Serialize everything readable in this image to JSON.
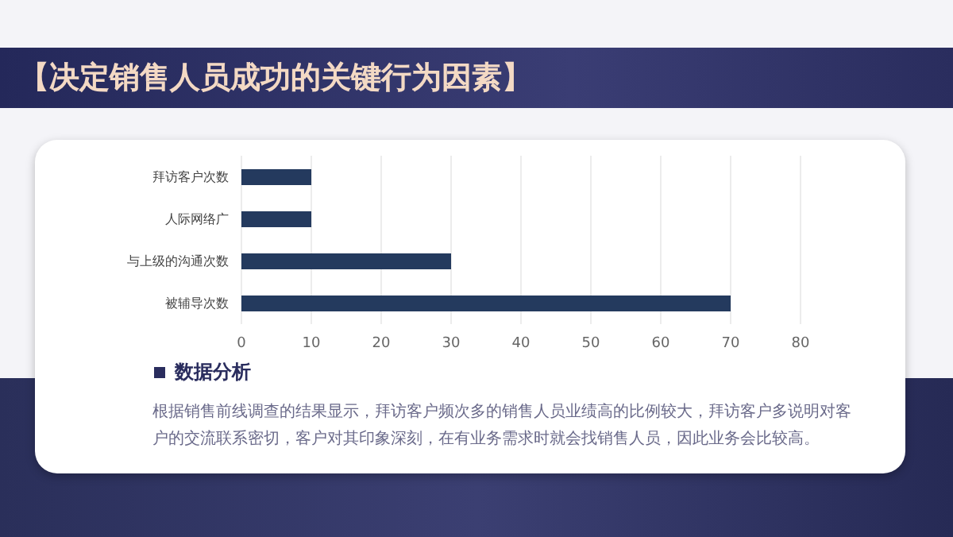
{
  "chart_data": {
    "type": "bar",
    "orientation": "horizontal",
    "title": "【决定销售人员成功的关键行为因素】",
    "categories": [
      "拜访客户次数",
      "人际网络广",
      "与上级的沟通次数",
      "被辅导次数"
    ],
    "values": [
      10,
      10,
      30,
      70
    ],
    "color": "#243a5e",
    "xlim": [
      0,
      80
    ],
    "xticks": [
      0,
      10,
      20,
      30,
      40,
      50,
      60,
      70,
      80
    ],
    "grid": "x",
    "annotations": [
      "数据分析",
      "根据销售前线调查的结果显示，拜访客户频次多的销售人员业绩高的比例较大，拜访客户多说明对客户的交流联系密切，客户对其印象深刻，在有业务需求时就会找销售人员，因此业务会比较高。"
    ]
  }
}
